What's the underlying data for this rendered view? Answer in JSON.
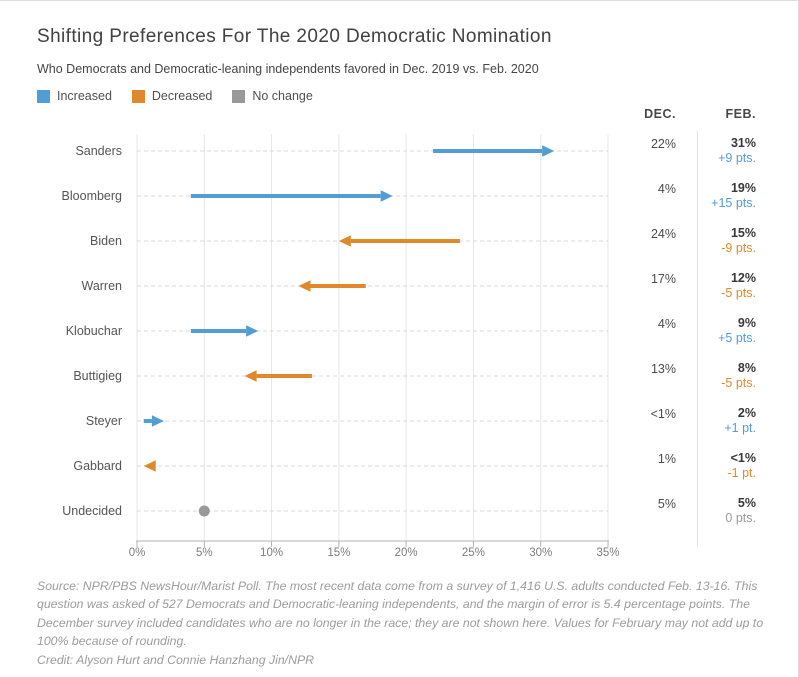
{
  "header": {
    "title": "Shifting Preferences For The 2020 Democratic Nomination",
    "subtitle": "Who Democrats and Democratic-leaning independents favored in Dec. 2019 vs. Feb. 2020"
  },
  "legend": [
    {
      "label": "Increased",
      "key": "increased"
    },
    {
      "label": "Decreased",
      "key": "decreased"
    },
    {
      "label": "No change",
      "key": "nochange"
    }
  ],
  "colors": {
    "increased": "#519DD4",
    "decreased": "#E0892C",
    "nochange": "#999999",
    "grid": "#e7e7e7",
    "row_dash": "#d9d9d9",
    "axis": "#b3b3b3"
  },
  "columns": {
    "dec": "DEC.",
    "feb": "FEB."
  },
  "chart_data": {
    "type": "arrow",
    "title": "Shifting Preferences For The 2020 Democratic Nomination",
    "xlabel": "",
    "ylabel": "",
    "xlim": [
      0,
      35
    ],
    "grid": true,
    "x_tick_values": [
      0,
      5,
      10,
      15,
      20,
      25,
      30,
      35
    ],
    "x_tick_labels": [
      "0%",
      "5%",
      "10%",
      "15%",
      "20%",
      "25%",
      "30%",
      "35%"
    ],
    "rows": [
      {
        "name": "Sanders",
        "dec": 22,
        "feb": 31,
        "dec_label": "22%",
        "feb_label": "31%",
        "change_label": "+9 pts.",
        "direction": "increased"
      },
      {
        "name": "Bloomberg",
        "dec": 4,
        "feb": 19,
        "dec_label": "4%",
        "feb_label": "19%",
        "change_label": "+15 pts.",
        "direction": "increased"
      },
      {
        "name": "Biden",
        "dec": 24,
        "feb": 15,
        "dec_label": "24%",
        "feb_label": "15%",
        "change_label": "-9 pts.",
        "direction": "decreased"
      },
      {
        "name": "Warren",
        "dec": 17,
        "feb": 12,
        "dec_label": "17%",
        "feb_label": "12%",
        "change_label": "-5 pts.",
        "direction": "decreased"
      },
      {
        "name": "Klobuchar",
        "dec": 4,
        "feb": 9,
        "dec_label": "4%",
        "feb_label": "9%",
        "change_label": "+5 pts.",
        "direction": "increased"
      },
      {
        "name": "Buttigieg",
        "dec": 13,
        "feb": 8,
        "dec_label": "13%",
        "feb_label": "8%",
        "change_label": "-5 pts.",
        "direction": "decreased"
      },
      {
        "name": "Steyer",
        "dec": 0.5,
        "feb": 2,
        "dec_label": "<1%",
        "feb_label": "2%",
        "change_label": "+1 pt.",
        "direction": "increased"
      },
      {
        "name": "Gabbard",
        "dec": 1,
        "feb": 0.5,
        "dec_label": "1%",
        "feb_label": "<1%",
        "change_label": "-1 pt.",
        "direction": "decreased"
      },
      {
        "name": "Undecided",
        "dec": 5,
        "feb": 5,
        "dec_label": "5%",
        "feb_label": "5%",
        "change_label": "0 pts.",
        "direction": "nochange"
      }
    ]
  },
  "footer": {
    "source": "Source: NPR/PBS NewsHour/Marist Poll. The most recent data come from a survey of 1,416 U.S. adults conducted Feb. 13-16. This question was asked of 527 Democrats and Democratic-leaning independents, and the margin of error is 5.4 percentage points. The December survey included candidates who are no longer in the race; they are not shown here. Values for February may not add up to 100% because of rounding.",
    "credit": "Credit: Alyson Hurt and Connie Hanzhang Jin/NPR"
  }
}
